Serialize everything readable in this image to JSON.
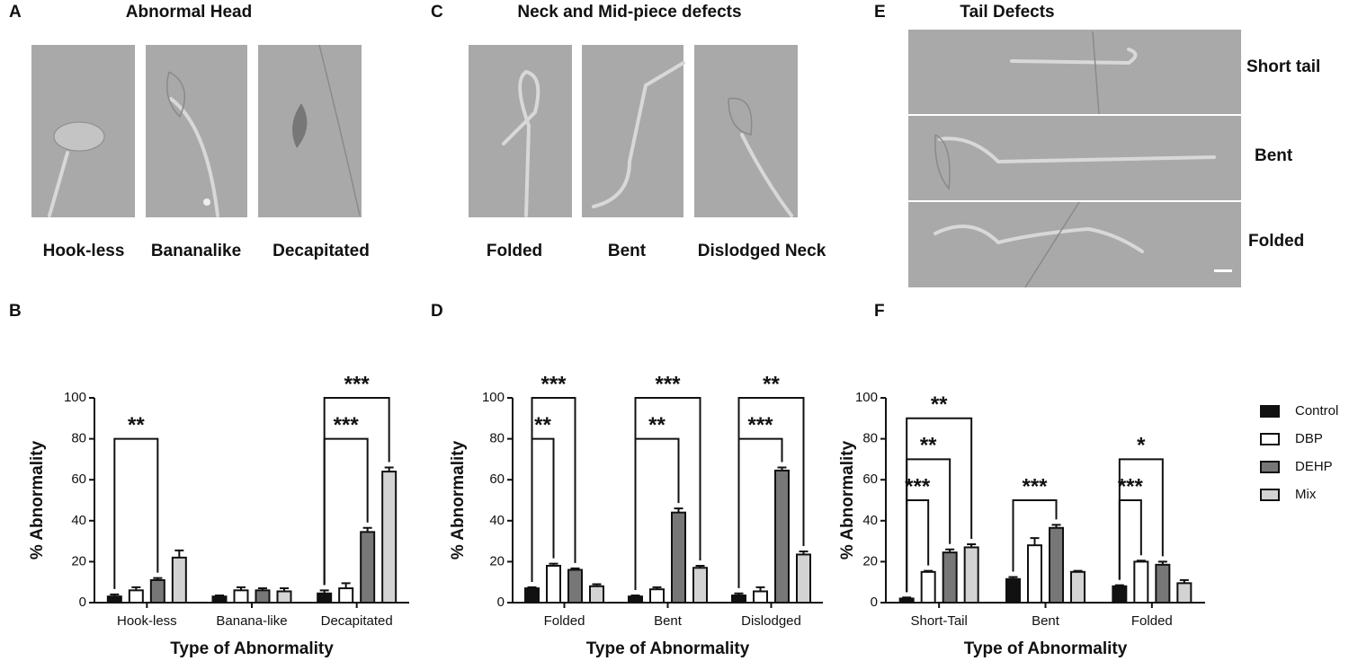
{
  "panels": {
    "A": {
      "letter": "A",
      "title": "Abnormal Head",
      "captions": [
        "Hook-less",
        "Bananalike",
        "Decapitated"
      ]
    },
    "C": {
      "letter": "C",
      "title": "Neck and Mid-piece defects",
      "captions": [
        "Folded",
        "Bent",
        "Dislodged Neck"
      ]
    },
    "E": {
      "letter": "E",
      "title": "Tail Defects",
      "captions": [
        "Short tail",
        "Bent",
        "Folded"
      ]
    },
    "B": {
      "letter": "B"
    },
    "D": {
      "letter": "D"
    },
    "F": {
      "letter": "F"
    }
  },
  "chart_data": [
    {
      "type": "bar",
      "ylabel": "% Abnormality",
      "xlabel": "Type of Abnormality",
      "categories": [
        "Hook-less",
        "Banana-like",
        "Decapitated"
      ],
      "ylim": [
        0,
        100
      ],
      "yticks": [
        0,
        20,
        40,
        60,
        80,
        100
      ],
      "series": [
        {
          "color": "#111111",
          "values": [
            3,
            3,
            4.5
          ],
          "errors": [
            1,
            0.5,
            1.5
          ]
        },
        {
          "color": "#ffffff",
          "values": [
            6,
            6,
            7
          ],
          "errors": [
            1.5,
            1.5,
            2.5
          ]
        },
        {
          "color": "#777777",
          "values": [
            11,
            6,
            34.5
          ],
          "errors": [
            1,
            1,
            2
          ]
        },
        {
          "color": "#d3d3d3",
          "values": [
            22,
            5.5,
            64
          ],
          "errors": [
            3.5,
            1.5,
            2
          ]
        }
      ],
      "brackets": [
        {
          "category": 0,
          "from": 0,
          "to": 2,
          "y": 80,
          "label": "**"
        },
        {
          "category": 2,
          "from": 0,
          "to": 2,
          "y": 80,
          "label": "***"
        },
        {
          "category": 2,
          "from": 0,
          "to": 3,
          "y": 100,
          "label": "***"
        }
      ]
    },
    {
      "type": "bar",
      "ylabel": "% Abnormality",
      "xlabel": "Type of Abnormality",
      "categories": [
        "Folded",
        "Bent",
        "Dislodged"
      ],
      "ylim": [
        0,
        100
      ],
      "yticks": [
        0,
        20,
        40,
        60,
        80,
        100
      ],
      "series": [
        {
          "color": "#111111",
          "values": [
            7,
            3,
            3.5
          ],
          "errors": [
            0.5,
            0.5,
            1
          ]
        },
        {
          "color": "#ffffff",
          "values": [
            18,
            6.5,
            5.5
          ],
          "errors": [
            1,
            1,
            2
          ]
        },
        {
          "color": "#777777",
          "values": [
            16,
            44,
            64.5
          ],
          "errors": [
            0.7,
            2,
            1.5
          ]
        },
        {
          "color": "#d3d3d3",
          "values": [
            8,
            17,
            23.5
          ],
          "errors": [
            1,
            1,
            1.5
          ]
        }
      ],
      "brackets": [
        {
          "category": 0,
          "from": 0,
          "to": 1,
          "y": 80,
          "label": "**"
        },
        {
          "category": 0,
          "from": 0,
          "to": 2,
          "y": 100,
          "label": "***"
        },
        {
          "category": 1,
          "from": 0,
          "to": 2,
          "y": 80,
          "label": "**"
        },
        {
          "category": 1,
          "from": 0,
          "to": 3,
          "y": 100,
          "label": "***"
        },
        {
          "category": 2,
          "from": 0,
          "to": 2,
          "y": 80,
          "label": "***"
        },
        {
          "category": 2,
          "from": 0,
          "to": 3,
          "y": 100,
          "label": "**"
        }
      ]
    },
    {
      "type": "bar",
      "ylabel": "% Abnormality",
      "xlabel": "Type of Abnormality",
      "categories": [
        "Short-Tail",
        "Bent",
        "Folded"
      ],
      "ylim": [
        0,
        100
      ],
      "yticks": [
        0,
        20,
        40,
        60,
        80,
        100
      ],
      "legend": "right",
      "series": [
        {
          "name": "Control",
          "color": "#111111",
          "values": [
            2,
            11.5,
            8
          ],
          "errors": [
            0.5,
            1,
            0.5
          ]
        },
        {
          "name": "DBP",
          "color": "#ffffff",
          "values": [
            15,
            28,
            20
          ],
          "errors": [
            0.5,
            3.5,
            0.5
          ]
        },
        {
          "name": "DEHP",
          "color": "#777777",
          "values": [
            24.5,
            36.5,
            18.5
          ],
          "errors": [
            1.5,
            1.5,
            1.5
          ]
        },
        {
          "name": "Mix",
          "color": "#d3d3d3",
          "values": [
            27,
            15,
            9.5
          ],
          "errors": [
            1.5,
            0.5,
            1.5
          ]
        }
      ],
      "brackets": [
        {
          "category": 0,
          "from": 0,
          "to": 1,
          "y": 50,
          "label": "***"
        },
        {
          "category": 0,
          "from": 0,
          "to": 2,
          "y": 70,
          "label": "**"
        },
        {
          "category": 0,
          "from": 0,
          "to": 3,
          "y": 90,
          "label": "**"
        },
        {
          "category": 1,
          "from": 0,
          "to": 2,
          "y": 50,
          "label": "***"
        },
        {
          "category": 2,
          "from": 0,
          "to": 1,
          "y": 50,
          "label": "***"
        },
        {
          "category": 2,
          "from": 0,
          "to": 2,
          "y": 70,
          "label": "*"
        }
      ]
    }
  ]
}
